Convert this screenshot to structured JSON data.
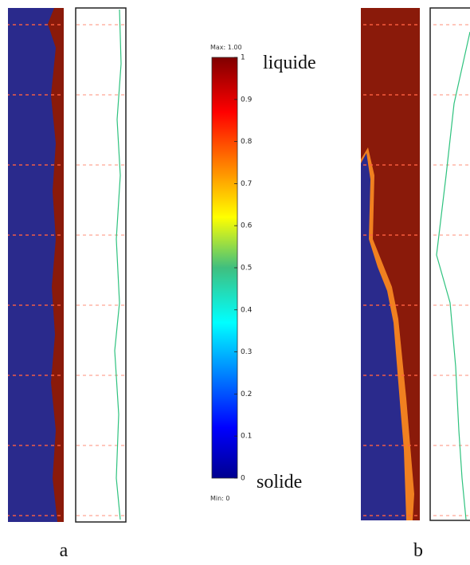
{
  "colorbar": {
    "max_label": "Max: 1.00",
    "min_label": "Min: 0",
    "lim": [
      0,
      1
    ],
    "ticks": [
      0,
      0.1,
      0.2,
      0.3,
      0.4,
      0.5,
      0.6,
      0.7,
      0.8,
      0.9,
      1
    ],
    "top_annotation": "liquide",
    "bottom_annotation": "solide"
  },
  "panels": [
    {
      "label": "a"
    },
    {
      "label": "b"
    }
  ]
}
